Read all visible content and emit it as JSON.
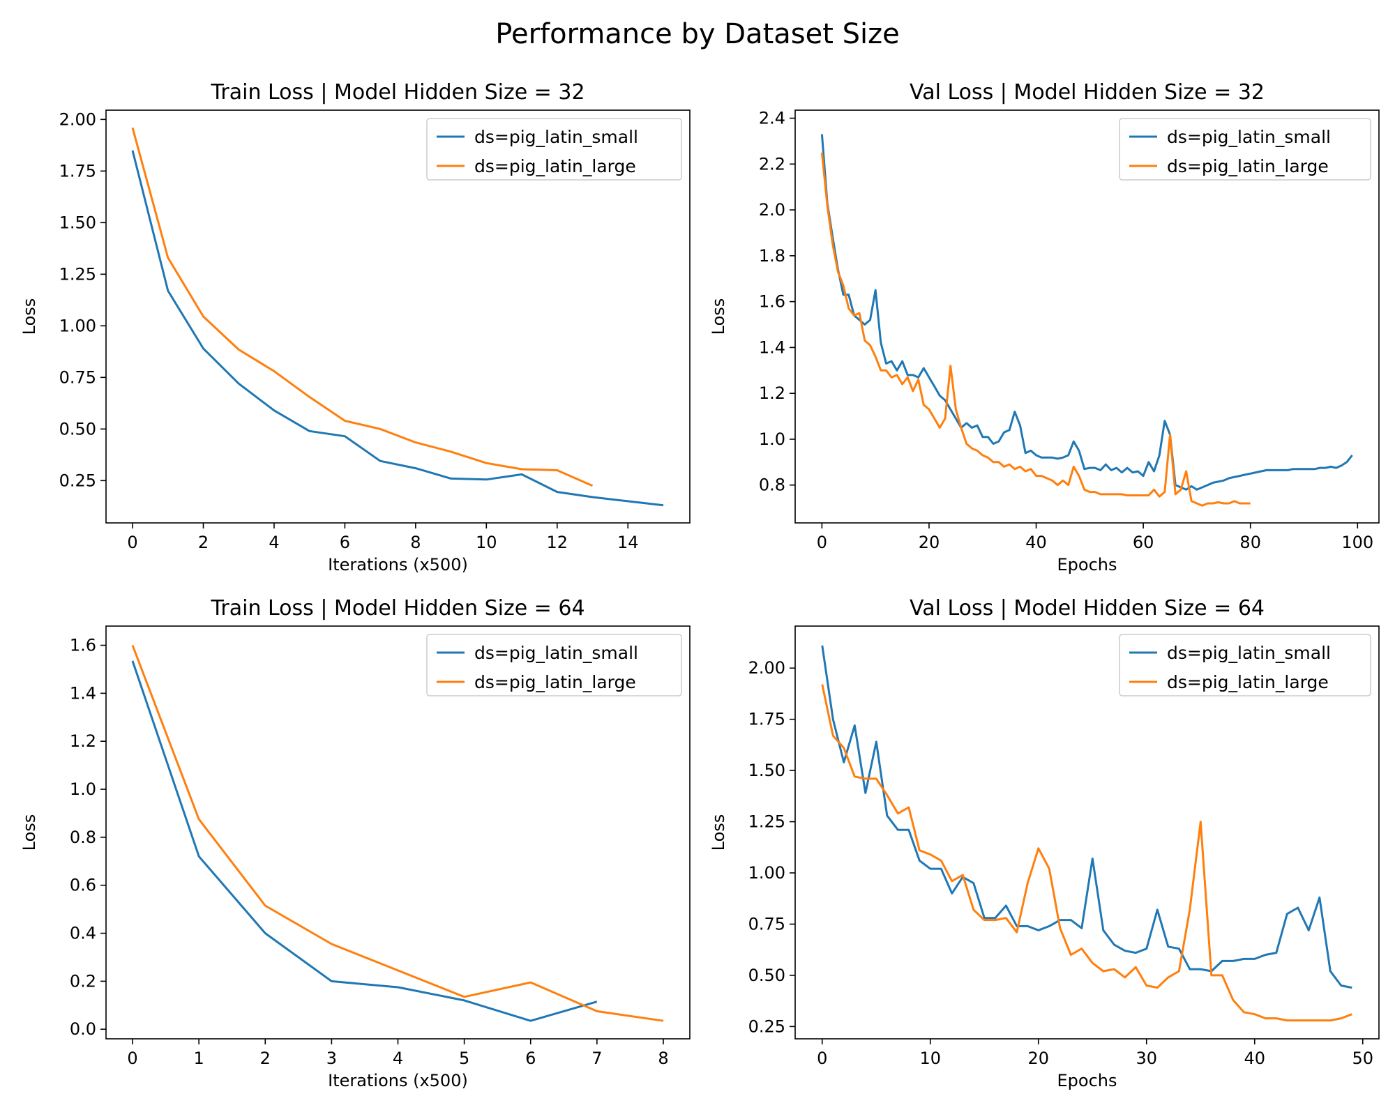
{
  "figure": {
    "title": "Performance by Dataset Size"
  },
  "series_names": [
    "ds=pig_latin_small",
    "ds=pig_latin_large"
  ],
  "colors": {
    "small": "#1f77b4",
    "large": "#ff7f0e",
    "axis": "#000000",
    "legend_border": "#cccccc"
  },
  "chart_data": [
    {
      "type": "line",
      "title": "Train Loss | Model Hidden Size = 32",
      "xlabel": "Iterations (x500)",
      "ylabel": "Loss",
      "xlim": [
        -0.75,
        15.75
      ],
      "ylim": [
        0.045,
        2.045
      ],
      "xticks": [
        0,
        2,
        4,
        6,
        8,
        10,
        12,
        14
      ],
      "yticks": [
        0.25,
        0.5,
        0.75,
        1.0,
        1.25,
        1.5,
        1.75,
        2.0
      ],
      "ytick_labels": [
        "0.25",
        "0.50",
        "0.75",
        "1.00",
        "1.25",
        "1.50",
        "1.75",
        "2.00"
      ],
      "legend": "top-right",
      "grid": false,
      "series": [
        {
          "name": "ds=pig_latin_small",
          "color": "#1f77b4",
          "x": [
            0,
            1,
            2,
            3,
            4,
            5,
            6,
            7,
            8,
            9,
            10,
            11,
            12,
            13,
            14,
            15
          ],
          "y": [
            1.85,
            1.17,
            0.89,
            0.72,
            0.59,
            0.49,
            0.465,
            0.345,
            0.31,
            0.26,
            0.255,
            0.28,
            0.195,
            0.17,
            0.15,
            0.13
          ]
        },
        {
          "name": "ds=pig_latin_large",
          "color": "#ff7f0e",
          "x": [
            0,
            1,
            2,
            3,
            4,
            5,
            6,
            7,
            8,
            9,
            10,
            11,
            12,
            13
          ],
          "y": [
            1.96,
            1.33,
            1.045,
            0.885,
            0.78,
            0.655,
            0.54,
            0.5,
            0.435,
            0.39,
            0.335,
            0.305,
            0.3,
            0.225
          ]
        }
      ]
    },
    {
      "type": "line",
      "title": "Val Loss | Model Hidden Size = 32",
      "xlabel": "Epochs",
      "ylabel": "Loss",
      "xlim": [
        -5,
        104
      ],
      "ylim": [
        0.635,
        2.435
      ],
      "xticks": [
        0,
        20,
        40,
        60,
        80,
        100
      ],
      "yticks": [
        0.8,
        1.0,
        1.2,
        1.4,
        1.6,
        1.8,
        2.0,
        2.2,
        2.4
      ],
      "ytick_labels": [
        "0.8",
        "1.0",
        "1.2",
        "1.4",
        "1.6",
        "1.8",
        "2.0",
        "2.2",
        "2.4"
      ],
      "legend": "top-right",
      "grid": false,
      "series": [
        {
          "name": "ds=pig_latin_small",
          "color": "#1f77b4",
          "x": [
            0,
            1,
            2,
            3,
            4,
            5,
            6,
            7,
            8,
            9,
            10,
            11,
            12,
            13,
            14,
            15,
            16,
            17,
            18,
            19,
            20,
            21,
            22,
            23,
            24,
            25,
            26,
            27,
            28,
            29,
            30,
            31,
            32,
            33,
            34,
            35,
            36,
            37,
            38,
            39,
            40,
            41,
            42,
            43,
            44,
            45,
            46,
            47,
            48,
            49,
            50,
            51,
            52,
            53,
            54,
            55,
            56,
            57,
            58,
            59,
            60,
            61,
            62,
            63,
            64,
            65,
            66,
            67,
            68,
            69,
            70,
            71,
            72,
            73,
            74,
            75,
            76,
            77,
            78,
            79,
            80,
            81,
            82,
            83,
            84,
            85,
            86,
            87,
            88,
            89,
            90,
            91,
            92,
            93,
            94,
            95,
            96,
            97,
            98,
            99
          ],
          "y": [
            2.33,
            2.03,
            1.88,
            1.74,
            1.63,
            1.63,
            1.54,
            1.52,
            1.5,
            1.52,
            1.65,
            1.42,
            1.33,
            1.34,
            1.3,
            1.34,
            1.28,
            1.28,
            1.27,
            1.31,
            1.27,
            1.23,
            1.19,
            1.17,
            1.13,
            1.09,
            1.05,
            1.07,
            1.05,
            1.06,
            1.01,
            1.01,
            0.98,
            0.99,
            1.03,
            1.04,
            1.12,
            1.06,
            0.94,
            0.95,
            0.93,
            0.92,
            0.92,
            0.92,
            0.915,
            0.92,
            0.93,
            0.99,
            0.95,
            0.87,
            0.875,
            0.875,
            0.865,
            0.89,
            0.865,
            0.875,
            0.855,
            0.875,
            0.855,
            0.86,
            0.84,
            0.9,
            0.86,
            0.93,
            1.08,
            1.02,
            0.8,
            0.79,
            0.78,
            0.795,
            0.78,
            0.79,
            0.8,
            0.81,
            0.815,
            0.82,
            0.83,
            0.835,
            0.84,
            0.845,
            0.85,
            0.855,
            0.86,
            0.865,
            0.865,
            0.865,
            0.865,
            0.865,
            0.87,
            0.87,
            0.87,
            0.87,
            0.87,
            0.875,
            0.875,
            0.88,
            0.875,
            0.885,
            0.9,
            0.93
          ]
        },
        {
          "name": "ds=pig_latin_large",
          "color": "#ff7f0e",
          "x": [
            0,
            1,
            2,
            3,
            4,
            5,
            6,
            7,
            8,
            9,
            10,
            11,
            12,
            13,
            14,
            15,
            16,
            17,
            18,
            19,
            20,
            21,
            22,
            23,
            24,
            25,
            26,
            27,
            28,
            29,
            30,
            31,
            32,
            33,
            34,
            35,
            36,
            37,
            38,
            39,
            40,
            41,
            42,
            43,
            44,
            45,
            46,
            47,
            48,
            49,
            50,
            51,
            52,
            53,
            54,
            55,
            56,
            57,
            58,
            59,
            60,
            61,
            62,
            63,
            64,
            65,
            66,
            67,
            68,
            69,
            70,
            71,
            72,
            73,
            74,
            75,
            76,
            77,
            78,
            79,
            80
          ],
          "y": [
            2.25,
            2.02,
            1.85,
            1.73,
            1.67,
            1.57,
            1.54,
            1.55,
            1.43,
            1.41,
            1.36,
            1.3,
            1.3,
            1.27,
            1.28,
            1.24,
            1.27,
            1.21,
            1.26,
            1.15,
            1.13,
            1.09,
            1.05,
            1.09,
            1.32,
            1.13,
            1.05,
            0.98,
            0.96,
            0.95,
            0.93,
            0.92,
            0.9,
            0.9,
            0.88,
            0.89,
            0.87,
            0.88,
            0.86,
            0.87,
            0.84,
            0.84,
            0.83,
            0.82,
            0.8,
            0.82,
            0.8,
            0.88,
            0.84,
            0.78,
            0.77,
            0.77,
            0.76,
            0.76,
            0.76,
            0.76,
            0.76,
            0.755,
            0.755,
            0.755,
            0.755,
            0.755,
            0.78,
            0.75,
            0.77,
            1.02,
            0.76,
            0.78,
            0.86,
            0.73,
            0.72,
            0.71,
            0.72,
            0.72,
            0.725,
            0.72,
            0.72,
            0.73,
            0.72,
            0.72,
            0.72
          ]
        }
      ]
    },
    {
      "type": "line",
      "title": "Train Loss | Model Hidden Size = 64",
      "xlabel": "Iterations (x500)",
      "ylabel": "Loss",
      "xlim": [
        -0.4,
        8.4
      ],
      "ylim": [
        -0.04,
        1.68
      ],
      "xticks": [
        0,
        1,
        2,
        3,
        4,
        5,
        6,
        7,
        8
      ],
      "yticks": [
        0.0,
        0.2,
        0.4,
        0.6,
        0.8,
        1.0,
        1.2,
        1.4,
        1.6
      ],
      "ytick_labels": [
        "0.0",
        "0.2",
        "0.4",
        "0.6",
        "0.8",
        "1.0",
        "1.2",
        "1.4",
        "1.6"
      ],
      "legend": "top-right",
      "grid": false,
      "series": [
        {
          "name": "ds=pig_latin_small",
          "color": "#1f77b4",
          "x": [
            0,
            1,
            2,
            3,
            4,
            5,
            6,
            7
          ],
          "y": [
            1.535,
            0.72,
            0.4,
            0.2,
            0.175,
            0.12,
            0.035,
            0.115
          ]
        },
        {
          "name": "ds=pig_latin_large",
          "color": "#ff7f0e",
          "x": [
            0,
            1,
            2,
            3,
            4,
            5,
            6,
            7,
            8
          ],
          "y": [
            1.6,
            0.875,
            0.515,
            0.355,
            0.245,
            0.135,
            0.195,
            0.075,
            0.035
          ]
        }
      ]
    },
    {
      "type": "line",
      "title": "Val Loss | Model Hidden Size = 64",
      "xlabel": "Epochs",
      "ylabel": "Loss",
      "xlim": [
        -2.5,
        51.5
      ],
      "ylim": [
        0.19,
        2.205
      ],
      "xticks": [
        0,
        10,
        20,
        30,
        40,
        50
      ],
      "yticks": [
        0.25,
        0.5,
        0.75,
        1.0,
        1.25,
        1.5,
        1.75,
        2.0
      ],
      "ytick_labels": [
        "0.25",
        "0.50",
        "0.75",
        "1.00",
        "1.25",
        "1.50",
        "1.75",
        "2.00"
      ],
      "legend": "top-right",
      "grid": false,
      "series": [
        {
          "name": "ds=pig_latin_small",
          "color": "#1f77b4",
          "x": [
            0,
            1,
            2,
            3,
            4,
            5,
            6,
            7,
            8,
            9,
            10,
            11,
            12,
            13,
            14,
            15,
            16,
            17,
            18,
            19,
            20,
            21,
            22,
            23,
            24,
            25,
            26,
            27,
            28,
            29,
            30,
            31,
            32,
            33,
            34,
            35,
            36,
            37,
            38,
            39,
            40,
            41,
            42,
            43,
            44,
            45,
            46,
            47,
            48,
            49
          ],
          "y": [
            2.11,
            1.75,
            1.54,
            1.72,
            1.39,
            1.64,
            1.28,
            1.21,
            1.21,
            1.06,
            1.02,
            1.02,
            0.9,
            0.98,
            0.95,
            0.78,
            0.78,
            0.84,
            0.74,
            0.74,
            0.72,
            0.74,
            0.77,
            0.77,
            0.73,
            1.07,
            0.72,
            0.65,
            0.62,
            0.61,
            0.63,
            0.82,
            0.64,
            0.63,
            0.53,
            0.53,
            0.52,
            0.57,
            0.57,
            0.58,
            0.58,
            0.6,
            0.61,
            0.8,
            0.83,
            0.72,
            0.88,
            0.52,
            0.45,
            0.44
          ]
        },
        {
          "name": "ds=pig_latin_large",
          "color": "#ff7f0e",
          "x": [
            0,
            1,
            2,
            3,
            4,
            5,
            6,
            7,
            8,
            9,
            10,
            11,
            12,
            13,
            14,
            15,
            16,
            17,
            18,
            19,
            20,
            21,
            22,
            23,
            24,
            25,
            26,
            27,
            28,
            29,
            30,
            31,
            32,
            33,
            34,
            35,
            36,
            37,
            38,
            39,
            40,
            41,
            42,
            43,
            44,
            45,
            46,
            47,
            48,
            49
          ],
          "y": [
            1.92,
            1.67,
            1.61,
            1.47,
            1.46,
            1.46,
            1.38,
            1.29,
            1.32,
            1.11,
            1.09,
            1.06,
            0.96,
            0.99,
            0.82,
            0.77,
            0.77,
            0.78,
            0.71,
            0.95,
            1.12,
            1.02,
            0.73,
            0.6,
            0.63,
            0.56,
            0.52,
            0.53,
            0.49,
            0.54,
            0.45,
            0.44,
            0.49,
            0.52,
            0.82,
            1.25,
            0.5,
            0.5,
            0.38,
            0.32,
            0.31,
            0.29,
            0.29,
            0.28,
            0.28,
            0.28,
            0.28,
            0.28,
            0.29,
            0.31
          ]
        }
      ]
    }
  ]
}
